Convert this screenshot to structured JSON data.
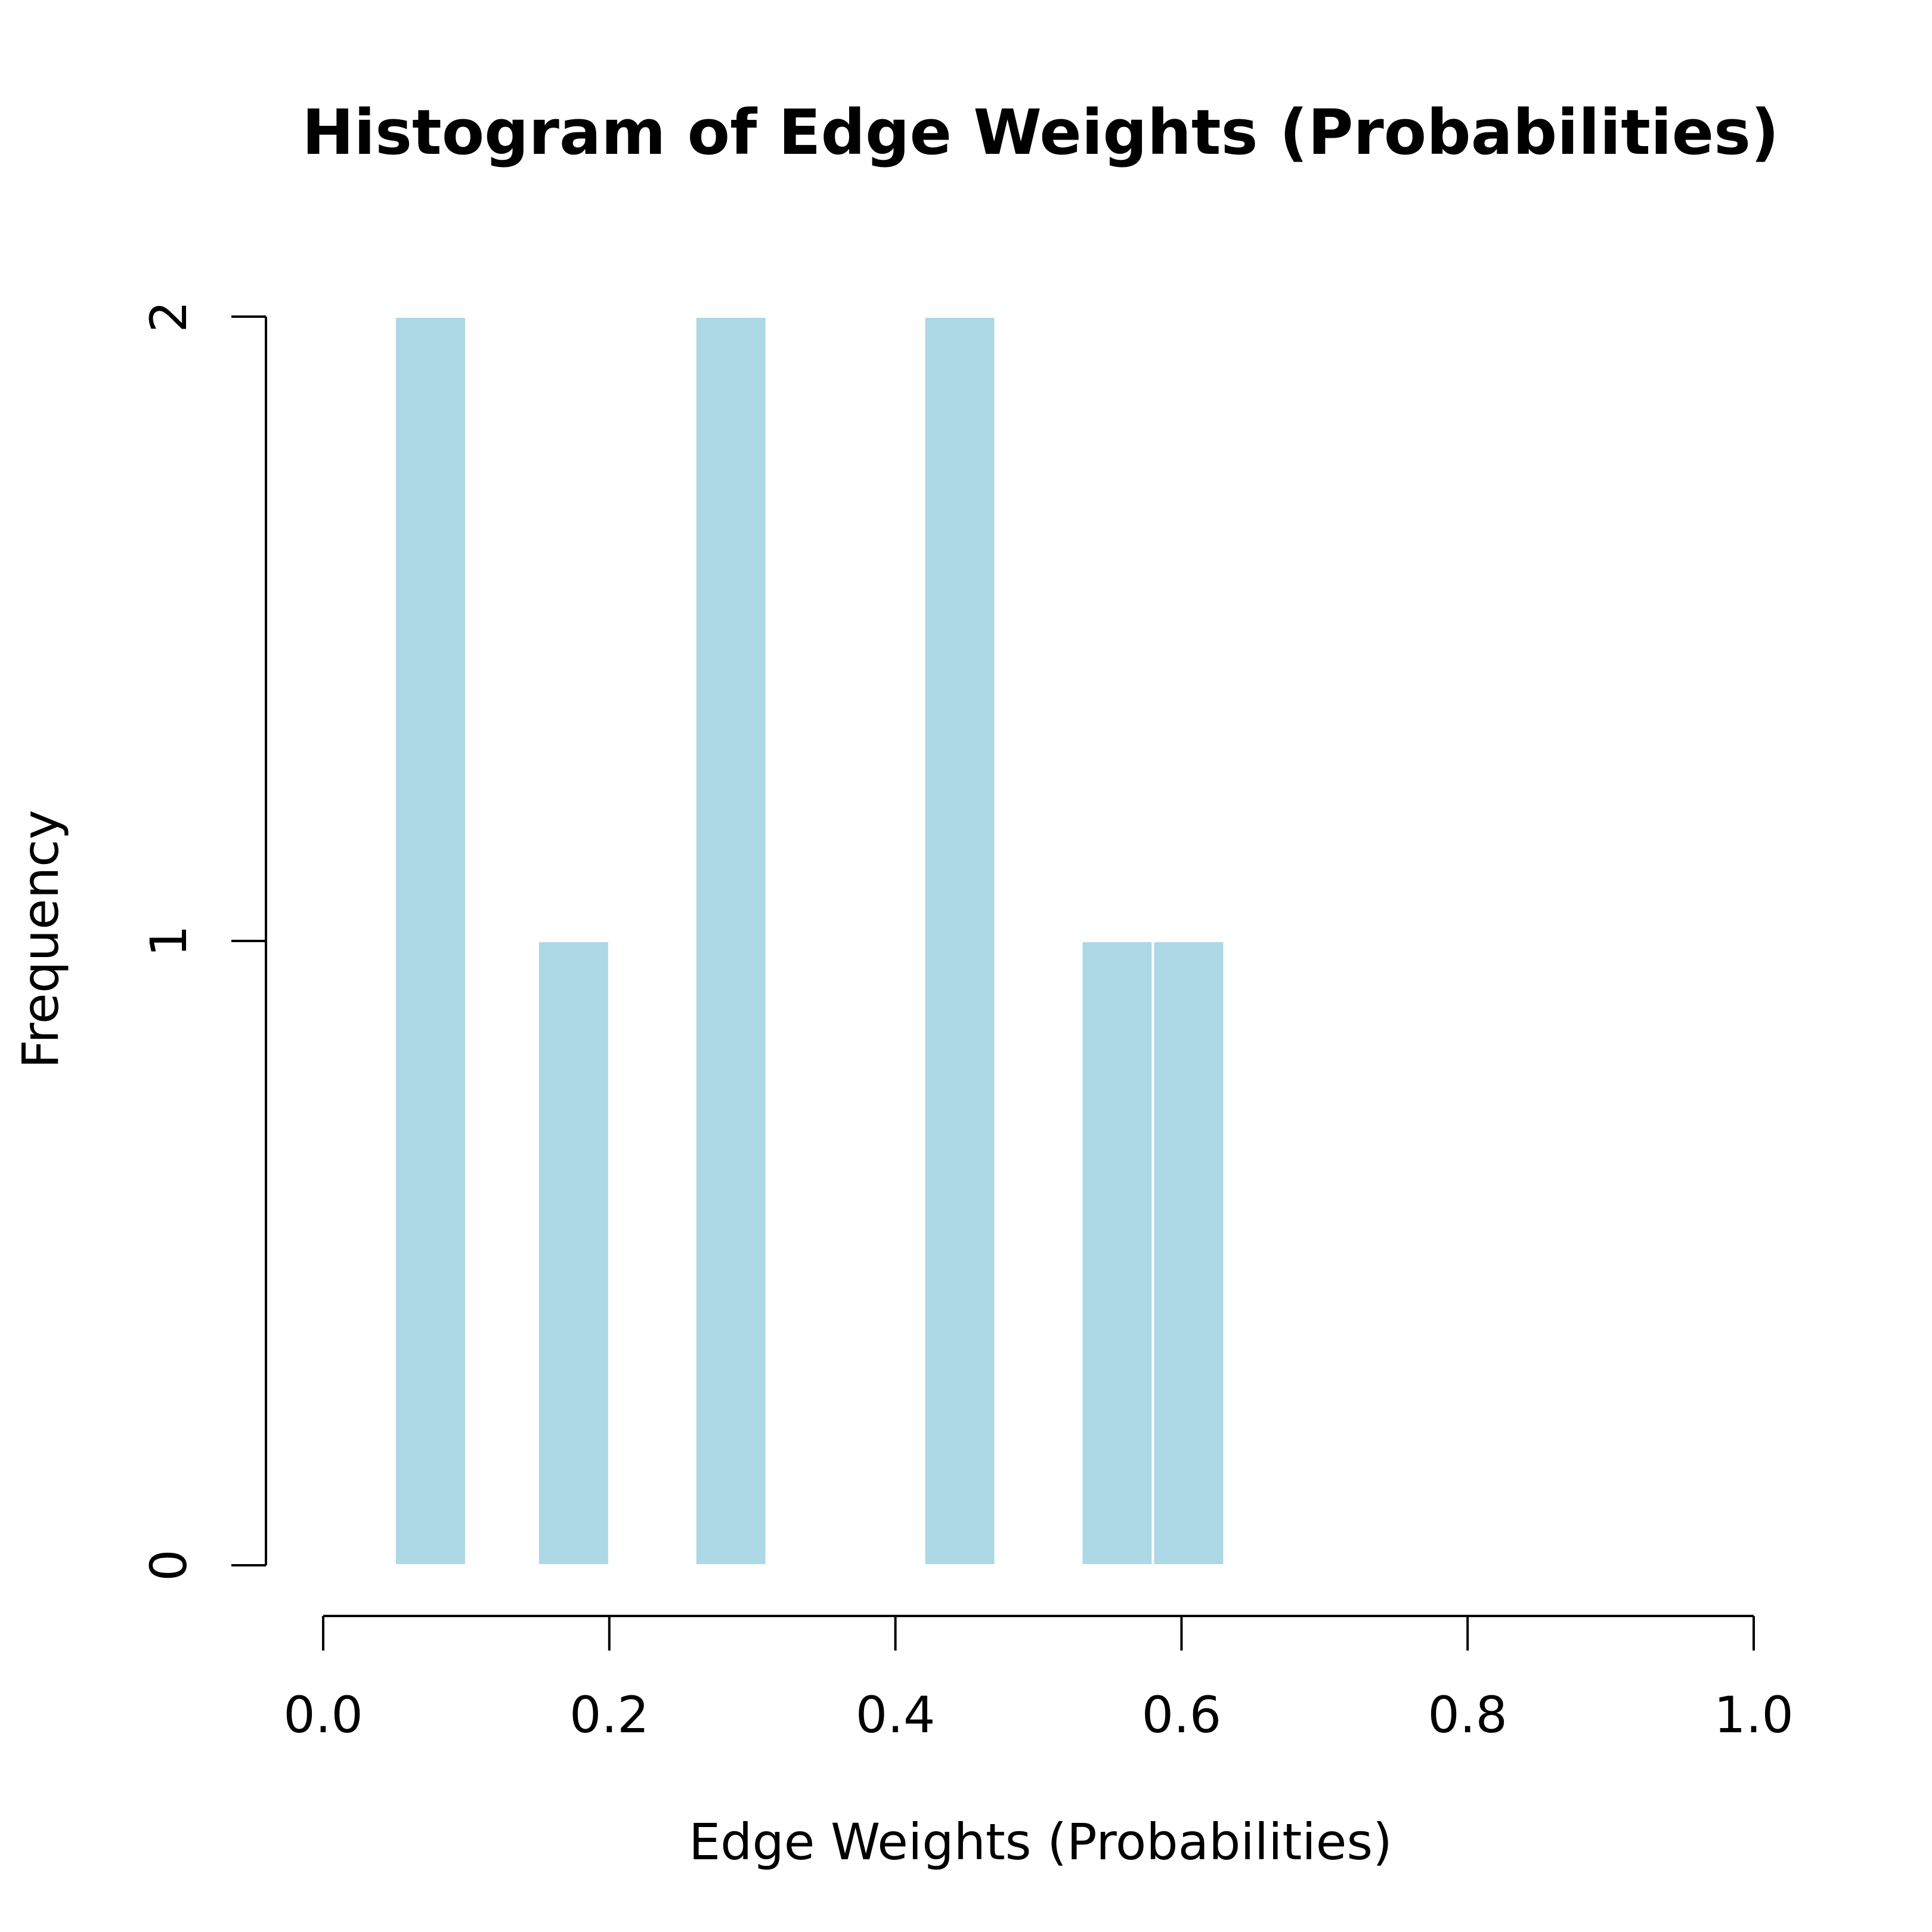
{
  "chart_data": {
    "type": "bar",
    "title": "Histogram of Edge Weights (Probabilities)",
    "xlabel": "Edge Weights (Probabilities)",
    "ylabel": "Frequency",
    "xlim": [
      0,
      1
    ],
    "ylim": [
      0,
      2
    ],
    "x_ticks": [
      "0.0",
      "0.2",
      "0.4",
      "0.6",
      "0.8",
      "1.0"
    ],
    "x_tick_values": [
      0,
      0.2,
      0.4,
      0.6,
      0.8,
      1.0
    ],
    "y_ticks": [
      "0",
      "1",
      "2"
    ],
    "y_tick_values": [
      0,
      1,
      2
    ],
    "bins": [
      {
        "start": 0.05,
        "end": 0.1,
        "count": 2
      },
      {
        "start": 0.15,
        "end": 0.2,
        "count": 1
      },
      {
        "start": 0.26,
        "end": 0.31,
        "count": 2
      },
      {
        "start": 0.42,
        "end": 0.47,
        "count": 2
      },
      {
        "start": 0.53,
        "end": 0.58,
        "count": 1
      },
      {
        "start": 0.58,
        "end": 0.63,
        "count": 1
      }
    ],
    "bar_color": "#add8e6",
    "bar_border_color": "#ffffff",
    "grid": false,
    "legend": "none"
  }
}
